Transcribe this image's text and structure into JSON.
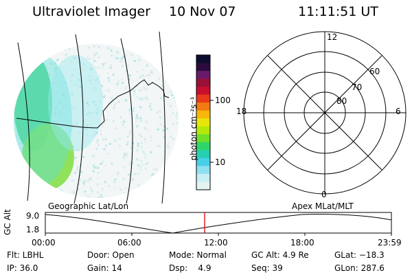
{
  "header": {
    "instrument": "Ultraviolet Imager",
    "date": "10 Nov 07",
    "time": "11:11:51 UT"
  },
  "colorbar": {
    "unit_label": "photon cm⁻²s⁻¹",
    "ticks": [
      "100",
      "10"
    ],
    "colors": [
      "#0d0d2e",
      "#2b0b3e",
      "#6a1a6a",
      "#9b1038",
      "#c8102e",
      "#e83a1a",
      "#f07b12",
      "#f8b80a",
      "#e6e60a",
      "#b6e80a",
      "#6ee02a",
      "#2ed66a",
      "#26d0b0",
      "#48d0e8",
      "#8ee0f0",
      "#c8eef4",
      "#e4f2f2"
    ]
  },
  "map_labels": {
    "left": "Geographic Lat/Lon",
    "right": "Apex MLat/MLT"
  },
  "polar": {
    "labels": [
      "12",
      "6",
      "18",
      "0",
      "60",
      "70",
      "80"
    ]
  },
  "timeline": {
    "axis_title": "GC Alt",
    "y_ticks": [
      "9.0",
      "1.8"
    ],
    "x_ticks": [
      "00:00",
      "06:00",
      "12:00",
      "18:00",
      "23:59"
    ],
    "marker_color": "#e00000"
  },
  "status": {
    "row1": [
      "Flt: LBHL",
      "Door: Open",
      "Mode: Normal",
      "GC Alt: 4.9 Re",
      "GLat: −18.3"
    ],
    "row2": [
      "IP: 36.0",
      "Gain: 14",
      "Dsp:    4.9",
      "Seq: 39",
      "GLon: 287.6"
    ]
  }
}
